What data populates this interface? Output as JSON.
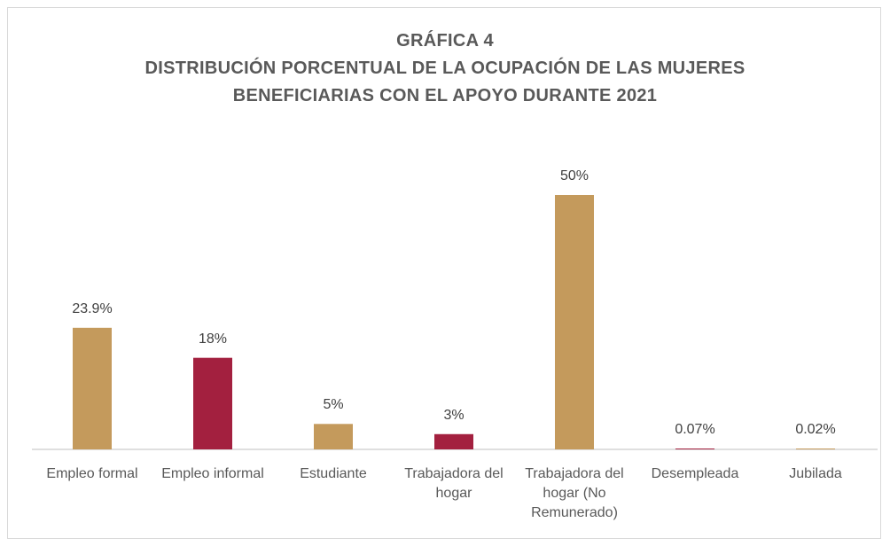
{
  "chart_data": {
    "type": "bar",
    "title": "GRÁFICA 4",
    "subtitle": [
      "DISTRIBUCIÓN PORCENTUAL DE LA OCUPACIÓN DE LAS MUJERES",
      "BENEFICIARIAS CON EL APOYO DURANTE 2021"
    ],
    "categories": [
      "Empleo formal",
      "Empleo informal",
      "Estudiante",
      "Trabajadora del hogar",
      "Trabajadora del hogar (No Remunerado)",
      "Desempleada",
      "Jubilada"
    ],
    "values": [
      23.9,
      18,
      5,
      3,
      50,
      0.07,
      0.02
    ],
    "value_labels": [
      "23.9%",
      "18%",
      "5%",
      "3%",
      "50%",
      "0.07%",
      "0.02%"
    ],
    "colors": [
      "#c49a5c",
      "#a3203f",
      "#c49a5c",
      "#a3203f",
      "#c49a5c",
      "#a3203f",
      "#c49a5c"
    ]
  }
}
